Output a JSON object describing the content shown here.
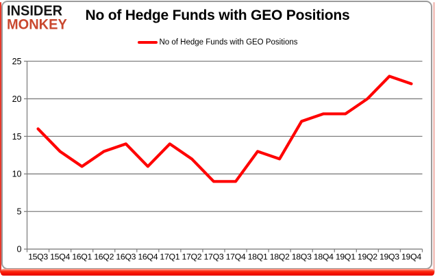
{
  "logo": {
    "line1": "INSIDER",
    "line2": "MONKEY"
  },
  "header": {
    "title": "No of Hedge Funds with GEO Positions"
  },
  "legend": {
    "label": "No of Hedge Funds with GEO Positions"
  },
  "colors": {
    "line": "#ff0000",
    "grid": "#7f7f7f",
    "axis_text": "#000000",
    "frame_gray": "#9b9b9b",
    "accent_red": "#f50f00",
    "logo_black": "#151515",
    "logo_red": "#c9472e"
  },
  "chart_data": {
    "type": "line",
    "title": "No of Hedge Funds with GEO Positions",
    "categories": [
      "15Q3",
      "15Q4",
      "16Q1",
      "16Q2",
      "16Q3",
      "16Q4",
      "17Q1",
      "17Q2",
      "17Q3",
      "17Q4",
      "18Q1",
      "18Q2",
      "18Q3",
      "18Q4",
      "19Q1",
      "19Q2",
      "19Q3",
      "19Q4"
    ],
    "series": [
      {
        "name": "No of Hedge Funds with GEO Positions",
        "values": [
          16,
          13,
          11,
          13,
          14,
          11,
          14,
          12,
          9,
          9,
          13,
          12,
          17,
          18,
          18,
          20,
          23,
          22
        ]
      }
    ],
    "xlabel": "",
    "ylabel": "",
    "ylim": [
      0,
      25
    ],
    "yticks": [
      0,
      5,
      10,
      15,
      20,
      25
    ],
    "grid": true,
    "legend_position": "top"
  }
}
